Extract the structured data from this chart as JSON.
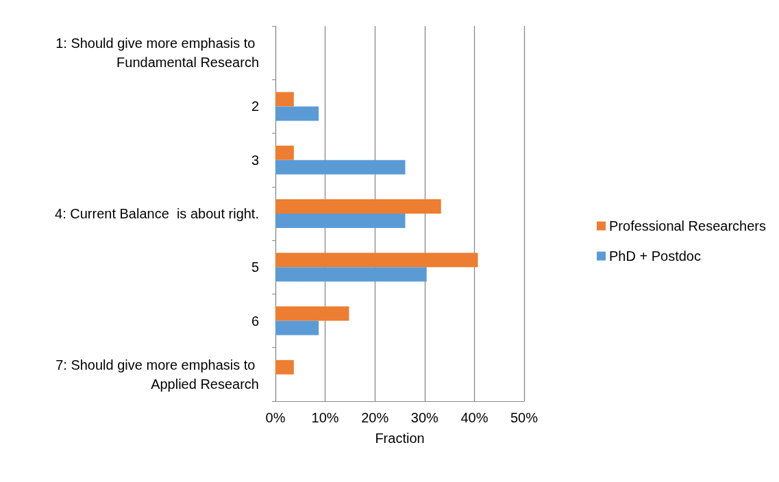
{
  "chart_data": {
    "type": "bar",
    "orientation": "horizontal",
    "xlabel": "Fraction",
    "categories": [
      "1: Should give more emphasis to Fundamental Research",
      "2",
      "3",
      "4: Current Balance  is about right.",
      "5",
      "6",
      "7: Should give more emphasis to Applied Research"
    ],
    "series": [
      {
        "name": "Professional Researchers",
        "color": "#ed7d31",
        "values": [
          null,
          3.7,
          3.7,
          33.3,
          40.7,
          14.8,
          3.7
        ]
      },
      {
        "name": "PhD + Postdoc",
        "color": "#5b9bd5",
        "values": [
          null,
          8.7,
          26.1,
          26.1,
          30.4,
          8.7,
          null
        ]
      }
    ],
    "xlim": [
      0,
      50
    ],
    "xticks": [
      {
        "value": 0,
        "label": "0%"
      },
      {
        "value": 10,
        "label": "10%"
      },
      {
        "value": 20,
        "label": "20%"
      },
      {
        "value": 30,
        "label": "30%"
      },
      {
        "value": 40,
        "label": "40%"
      },
      {
        "value": 50,
        "label": "50%"
      }
    ],
    "grid": "x",
    "legend": "right"
  }
}
